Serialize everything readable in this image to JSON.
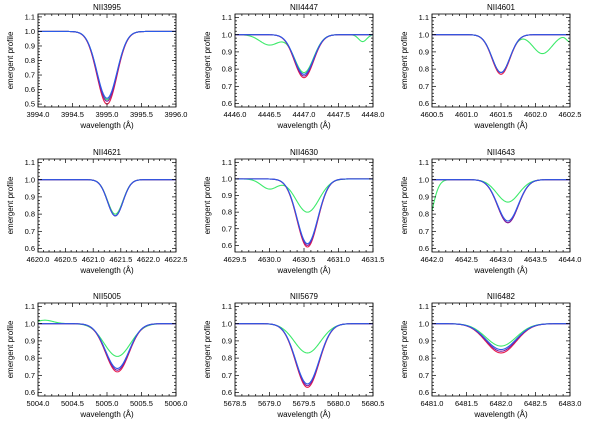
{
  "colors": {
    "red": "#e8194b",
    "purple": "#7a1fa2",
    "blue": "#2a5be8",
    "green": "#3dea6b"
  },
  "chart_data": [
    {
      "type": "line",
      "title": "NII3995",
      "xlabel": "wavelength (Å)",
      "ylabel": "emergent profile",
      "xlim": [
        3994.0,
        3996.0
      ],
      "ylim": [
        0.48,
        1.12
      ],
      "xticks": [
        3994.0,
        3994.5,
        3995.0,
        3995.5,
        3996.0
      ],
      "xtick_labels": [
        "3994.0",
        "3994.5",
        "3995.0",
        "3995.5",
        "3996.0"
      ],
      "yticks": [
        0.5,
        0.6,
        0.7,
        0.8,
        0.9,
        1.0,
        1.1
      ],
      "ytick_labels": [
        "0.5",
        "0.6",
        "0.7",
        "0.8",
        "0.9",
        "1.0",
        "1.1"
      ],
      "series": [
        {
          "color": "red",
          "center": 3995.0,
          "depth": 0.5,
          "sigma": 0.145
        },
        {
          "color": "purple",
          "center": 3995.0,
          "depth": 0.48,
          "sigma": 0.145
        },
        {
          "color": "blue",
          "center": 3995.0,
          "depth": 0.46,
          "sigma": 0.145
        },
        {
          "color": "green",
          "center": 3995.0,
          "depth": 0.47,
          "sigma": 0.145
        }
      ]
    },
    {
      "type": "line",
      "title": "NII4447",
      "xlabel": "wavelength (Å)",
      "ylabel": "emergent profile",
      "xlim": [
        4446.0,
        4448.0
      ],
      "ylim": [
        0.58,
        1.12
      ],
      "xticks": [
        4446.0,
        4446.5,
        4447.0,
        4447.5,
        4448.0
      ],
      "xtick_labels": [
        "4446.0",
        "4446.5",
        "4447.0",
        "4447.5",
        "4448.0"
      ],
      "yticks": [
        0.6,
        0.7,
        0.8,
        0.9,
        1.0,
        1.1
      ],
      "ytick_labels": [
        "0.6",
        "0.7",
        "0.8",
        "0.9",
        "1.0",
        "1.1"
      ],
      "series": [
        {
          "color": "red",
          "center": 4447.0,
          "depth": 0.25,
          "sigma": 0.14
        },
        {
          "color": "purple",
          "center": 4447.0,
          "depth": 0.24,
          "sigma": 0.14
        },
        {
          "color": "blue",
          "center": 4447.0,
          "depth": 0.23,
          "sigma": 0.14
        },
        {
          "color": "green",
          "center": 4447.0,
          "depth": 0.22,
          "sigma": 0.14,
          "extra": [
            [
              4446.5,
              0.06,
              0.14
            ],
            [
              4447.85,
              0.04,
              0.06
            ]
          ]
        }
      ]
    },
    {
      "type": "line",
      "title": "NII4601",
      "xlabel": "wavelength (Å)",
      "ylabel": "emergent profile",
      "xlim": [
        4600.5,
        4602.5
      ],
      "ylim": [
        0.58,
        1.12
      ],
      "xticks": [
        4600.5,
        4601.0,
        4601.5,
        4602.0,
        4602.5
      ],
      "xtick_labels": [
        "4600.5",
        "4601.0",
        "4601.5",
        "4602.0",
        "4602.5"
      ],
      "yticks": [
        0.6,
        0.7,
        0.8,
        0.9,
        1.0,
        1.1
      ],
      "ytick_labels": [
        "0.6",
        "0.7",
        "0.8",
        "0.9",
        "1.0",
        "1.1"
      ],
      "series": [
        {
          "color": "red",
          "center": 4601.5,
          "depth": 0.23,
          "sigma": 0.13
        },
        {
          "color": "purple",
          "center": 4601.5,
          "depth": 0.22,
          "sigma": 0.13
        },
        {
          "color": "blue",
          "center": 4601.5,
          "depth": 0.22,
          "sigma": 0.13
        },
        {
          "color": "green",
          "center": 4601.5,
          "depth": 0.22,
          "sigma": 0.13,
          "extra": [
            [
              4602.1,
              0.11,
              0.14
            ],
            [
              4602.5,
              0.04,
              0.05
            ]
          ]
        }
      ]
    },
    {
      "type": "line",
      "title": "NII4621",
      "xlabel": "wavelength (Å)",
      "ylabel": "emergent profile",
      "xlim": [
        4620.0,
        4622.5
      ],
      "ylim": [
        0.58,
        1.12
      ],
      "xticks": [
        4620.0,
        4620.5,
        4621.0,
        4621.5,
        4622.0,
        4622.5
      ],
      "xtick_labels": [
        "4620.0",
        "4620.5",
        "4621.0",
        "4621.5",
        "4622.0",
        "4622.5"
      ],
      "yticks": [
        0.6,
        0.7,
        0.8,
        0.9,
        1.0,
        1.1
      ],
      "ytick_labels": [
        "0.6",
        "0.7",
        "0.8",
        "0.9",
        "1.0",
        "1.1"
      ],
      "series": [
        {
          "color": "red",
          "center": 4621.4,
          "depth": 0.21,
          "sigma": 0.14
        },
        {
          "color": "purple",
          "center": 4621.4,
          "depth": 0.21,
          "sigma": 0.14
        },
        {
          "color": "blue",
          "center": 4621.4,
          "depth": 0.21,
          "sigma": 0.14
        },
        {
          "color": "green",
          "center": 4621.4,
          "depth": 0.2,
          "sigma": 0.14
        }
      ]
    },
    {
      "type": "line",
      "title": "NII4630",
      "xlabel": "wavelength (Å)",
      "ylabel": "emergent profile",
      "xlim": [
        4629.5,
        4631.5
      ],
      "ylim": [
        0.56,
        1.12
      ],
      "xticks": [
        4629.5,
        4630.0,
        4630.5,
        4631.0,
        4631.5
      ],
      "xtick_labels": [
        "4629.5",
        "4630.0",
        "4630.5",
        "4631.0",
        "4631.5"
      ],
      "yticks": [
        0.6,
        0.7,
        0.8,
        0.9,
        1.0,
        1.1
      ],
      "ytick_labels": [
        "0.6",
        "0.7",
        "0.8",
        "0.9",
        "1.0",
        "1.1"
      ],
      "series": [
        {
          "color": "red",
          "center": 4630.55,
          "depth": 0.41,
          "sigma": 0.15
        },
        {
          "color": "purple",
          "center": 4630.55,
          "depth": 0.4,
          "sigma": 0.15
        },
        {
          "color": "blue",
          "center": 4630.55,
          "depth": 0.39,
          "sigma": 0.15
        },
        {
          "color": "green",
          "center": 4630.55,
          "depth": 0.2,
          "sigma": 0.17,
          "extra": [
            [
              4630.0,
              0.06,
              0.12
            ]
          ]
        }
      ]
    },
    {
      "type": "line",
      "title": "NII4643",
      "xlabel": "wavelength (Å)",
      "ylabel": "emergent profile",
      "xlim": [
        4642.0,
        4644.0
      ],
      "ylim": [
        0.58,
        1.12
      ],
      "xticks": [
        4642.0,
        4642.5,
        4643.0,
        4643.5,
        4644.0
      ],
      "xtick_labels": [
        "4642.0",
        "4642.5",
        "4643.0",
        "4643.5",
        "4644.0"
      ],
      "yticks": [
        0.6,
        0.7,
        0.8,
        0.9,
        1.0,
        1.1
      ],
      "ytick_labels": [
        "0.6",
        "0.7",
        "0.8",
        "0.9",
        "1.0",
        "1.1"
      ],
      "series": [
        {
          "color": "red",
          "center": 4643.1,
          "depth": 0.25,
          "sigma": 0.15
        },
        {
          "color": "purple",
          "center": 4643.1,
          "depth": 0.25,
          "sigma": 0.15
        },
        {
          "color": "blue",
          "center": 4643.1,
          "depth": 0.24,
          "sigma": 0.15
        },
        {
          "color": "green",
          "center": 4643.1,
          "depth": 0.13,
          "sigma": 0.16,
          "extra": [
            [
              4641.9,
              0.3,
              0.1
            ]
          ]
        }
      ]
    },
    {
      "type": "line",
      "title": "NII5005",
      "xlabel": "wavelength (Å)",
      "ylabel": "emergent profile",
      "xlim": [
        5004.0,
        5006.0
      ],
      "ylim": [
        0.58,
        1.12
      ],
      "xticks": [
        5004.0,
        5004.5,
        5005.0,
        5005.5,
        5006.0
      ],
      "xtick_labels": [
        "5004.0",
        "5004.5",
        "5005.0",
        "5005.5",
        "5006.0"
      ],
      "yticks": [
        0.6,
        0.7,
        0.8,
        0.9,
        1.0,
        1.1
      ],
      "ytick_labels": [
        "0.6",
        "0.7",
        "0.8",
        "0.9",
        "1.0",
        "1.1"
      ],
      "series": [
        {
          "color": "red",
          "center": 5005.15,
          "depth": 0.28,
          "sigma": 0.17
        },
        {
          "color": "purple",
          "center": 5005.15,
          "depth": 0.27,
          "sigma": 0.17
        },
        {
          "color": "blue",
          "center": 5005.15,
          "depth": 0.26,
          "sigma": 0.17
        },
        {
          "color": "green",
          "center": 5005.15,
          "depth": 0.19,
          "sigma": 0.19,
          "extra": [
            [
              5004.1,
              -0.02,
              0.12
            ]
          ]
        }
      ]
    },
    {
      "type": "line",
      "title": "NII5679",
      "xlabel": "wavelength (Å)",
      "ylabel": "emergent profile",
      "xlim": [
        5678.5,
        5680.5
      ],
      "ylim": [
        0.58,
        1.12
      ],
      "xticks": [
        5678.5,
        5679.0,
        5679.5,
        5680.0,
        5680.5
      ],
      "xtick_labels": [
        "5678.5",
        "5679.0",
        "5679.5",
        "5680.0",
        "5680.5"
      ],
      "yticks": [
        0.6,
        0.7,
        0.8,
        0.9,
        1.0,
        1.1
      ],
      "ytick_labels": [
        "0.6",
        "0.7",
        "0.8",
        "0.9",
        "1.0",
        "1.1"
      ],
      "series": [
        {
          "color": "red",
          "center": 5679.55,
          "depth": 0.37,
          "sigma": 0.17
        },
        {
          "color": "purple",
          "center": 5679.55,
          "depth": 0.36,
          "sigma": 0.17
        },
        {
          "color": "blue",
          "center": 5679.55,
          "depth": 0.35,
          "sigma": 0.17
        },
        {
          "color": "green",
          "center": 5679.55,
          "depth": 0.17,
          "sigma": 0.19
        }
      ]
    },
    {
      "type": "line",
      "title": "NII6482",
      "xlabel": "wavelength (Å)",
      "ylabel": "emergent profile",
      "xlim": [
        6481.0,
        6483.0
      ],
      "ylim": [
        0.58,
        1.12
      ],
      "xticks": [
        6481.0,
        6481.5,
        6482.0,
        6482.5,
        6483.0
      ],
      "xtick_labels": [
        "6481.0",
        "6481.5",
        "6482.0",
        "6482.5",
        "6483.0"
      ],
      "yticks": [
        0.6,
        0.7,
        0.8,
        0.9,
        1.0,
        1.1
      ],
      "ytick_labels": [
        "0.6",
        "0.7",
        "0.8",
        "0.9",
        "1.0",
        "1.1"
      ],
      "series": [
        {
          "color": "red",
          "center": 6482.0,
          "depth": 0.17,
          "sigma": 0.22
        },
        {
          "color": "purple",
          "center": 6482.0,
          "depth": 0.16,
          "sigma": 0.22
        },
        {
          "color": "blue",
          "center": 6482.0,
          "depth": 0.15,
          "sigma": 0.22
        },
        {
          "color": "green",
          "center": 6482.0,
          "depth": 0.13,
          "sigma": 0.22
        }
      ]
    }
  ]
}
